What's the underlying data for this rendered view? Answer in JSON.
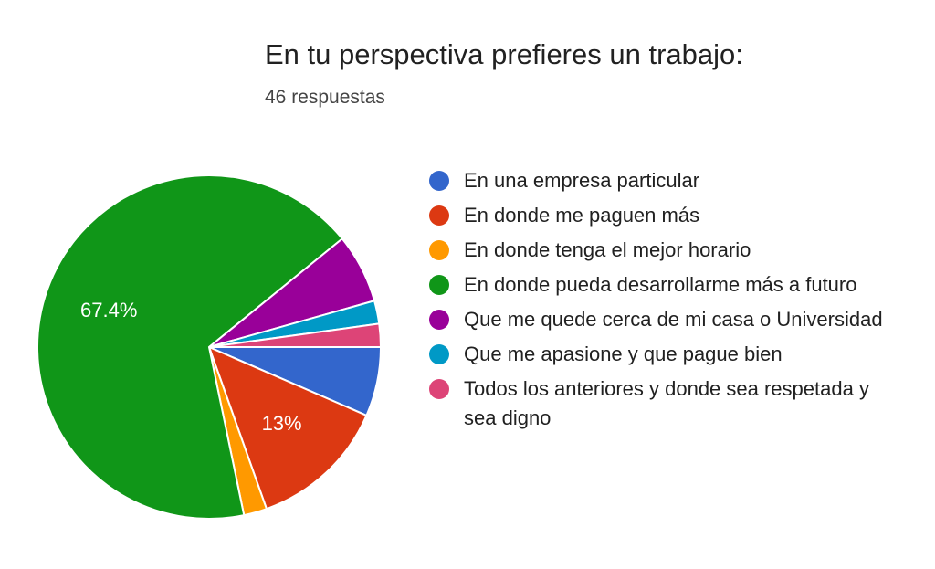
{
  "chart_data": {
    "type": "pie",
    "title": "En tu perspectiva prefieres un trabajo:",
    "subtitle": "46 respuestas",
    "categories": [
      "En una empresa particular",
      "En donde me paguen más",
      "En donde tenga el mejor horario",
      "En donde pueda desarrollarme más a futuro",
      "Que me quede cerca de mi casa o Universidad",
      "Que me apasione y que pague bien",
      "Todos los anteriores y donde sea respetada y sea digno"
    ],
    "values": [
      3,
      6,
      1,
      31,
      3,
      1,
      1
    ],
    "percent_labels": [
      "",
      "13%",
      "",
      "67.4%",
      "",
      "",
      ""
    ],
    "colors": [
      "#3366cc",
      "#dc3912",
      "#ff9900",
      "#109618",
      "#990099",
      "#0099c6",
      "#dd4477"
    ],
    "legend_position": "right",
    "start_direction": "right",
    "direction": "clockwise"
  }
}
